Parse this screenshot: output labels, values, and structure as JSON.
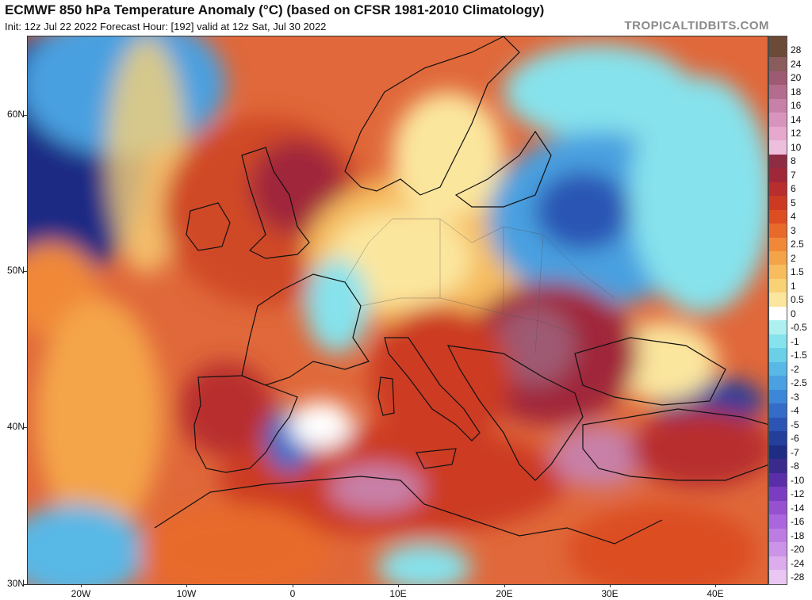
{
  "header": {
    "title": "ECMWF 850 hPa Temperature Anomaly (°C) (based on CFSR 1981-2010 Climatology)",
    "subtitle": "Init: 12z Jul 22 2022   Forecast Hour: [192]   valid at 12z Sat, Jul 30 2022",
    "watermark": "TROPICALTIDBITS.COM"
  },
  "map": {
    "region": "Europe",
    "lat_labels": [
      "60N",
      "50N",
      "40N",
      "30N"
    ],
    "lon_labels": [
      "20W",
      "10W",
      "0",
      "10E",
      "20E",
      "30E",
      "40E"
    ],
    "colors": {
      "background": "#e0683a",
      "land_outline": "#111111",
      "water_cold": "#2a56b0"
    }
  },
  "colorbar": {
    "levels": [
      "28",
      "24",
      "20",
      "18",
      "16",
      "14",
      "12",
      "10",
      "8",
      "7",
      "6",
      "5",
      "4",
      "3",
      "2.5",
      "2",
      "1.5",
      "1",
      "0.5",
      "0",
      "-0.5",
      "-1",
      "-1.5",
      "-2",
      "-2.5",
      "-3",
      "-4",
      "-5",
      "-6",
      "-7",
      "-8",
      "-10",
      "-12",
      "-14",
      "-16",
      "-18",
      "-20",
      "-24",
      "-28"
    ],
    "colors": [
      "#6b4a38",
      "#8a5c5c",
      "#9e5a72",
      "#b46c8e",
      "#c880a8",
      "#d894bc",
      "#e6a8cc",
      "#eebfdc",
      "#8e2c44",
      "#a0263a",
      "#b82e2e",
      "#cc3a24",
      "#dc4e22",
      "#e86a2a",
      "#f08838",
      "#f4a448",
      "#f6bc5e",
      "#f9d276",
      "#fbe69e",
      "#ffffff",
      "#aef0f0",
      "#86e2ec",
      "#6ad0e8",
      "#58b8e6",
      "#4aa0e0",
      "#3e86d8",
      "#346cc8",
      "#2c54b4",
      "#243e9c",
      "#1e2c84",
      "#3a2a8c",
      "#5a2ea8",
      "#7a3cc0",
      "#9650d0",
      "#aa66dc",
      "#bc7ce2",
      "#cc94e8",
      "#dcacec",
      "#eac6f2"
    ]
  }
}
